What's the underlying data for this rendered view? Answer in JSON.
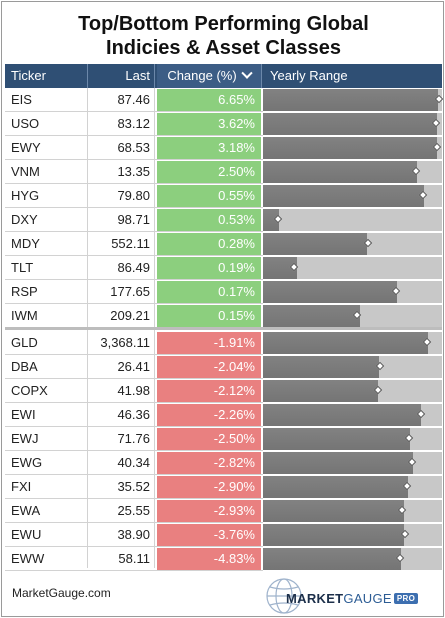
{
  "title": {
    "line1": "Top/Bottom Performing Global",
    "line2": "Indicies & Asset Classes"
  },
  "header": {
    "ticker": "Ticker",
    "last": "Last",
    "change": "Change (%)",
    "range": "Yearly Range"
  },
  "colors": {
    "header_bg": "#2f4f74",
    "positive": "#8ccf7e",
    "negative": "#e98080",
    "range_bar": "#7b7b7b",
    "range_bg": "#c8c8c8"
  },
  "chart_data": {
    "type": "table",
    "columns": [
      "Ticker",
      "Last",
      "Change (%)",
      "Yearly Range"
    ],
    "rows": [
      {
        "ticker": "EIS",
        "last": "87.46",
        "change": "6.65%",
        "range_fraction": 0.98,
        "marker": 0.99
      },
      {
        "ticker": "USO",
        "last": "83.12",
        "change": "3.62%",
        "range_fraction": 0.97,
        "marker": 0.97
      },
      {
        "ticker": "EWY",
        "last": "68.53",
        "change": "3.18%",
        "range_fraction": 0.97,
        "marker": 0.98
      },
      {
        "ticker": "VNM",
        "last": "13.35",
        "change": "2.50%",
        "range_fraction": 0.86,
        "marker": 0.86
      },
      {
        "ticker": "HYG",
        "last": "79.80",
        "change": "0.55%",
        "range_fraction": 0.9,
        "marker": 0.9
      },
      {
        "ticker": "DXY",
        "last": "98.71",
        "change": "0.53%",
        "range_fraction": 0.09,
        "marker": 0.09
      },
      {
        "ticker": "MDY",
        "last": "552.11",
        "change": "0.28%",
        "range_fraction": 0.58,
        "marker": 0.59
      },
      {
        "ticker": "TLT",
        "last": "86.49",
        "change": "0.19%",
        "range_fraction": 0.19,
        "marker": 0.18
      },
      {
        "ticker": "RSP",
        "last": "177.65",
        "change": "0.17%",
        "range_fraction": 0.75,
        "marker": 0.75
      },
      {
        "ticker": "IWM",
        "last": "209.21",
        "change": "0.15%",
        "range_fraction": 0.54,
        "marker": 0.53
      },
      {
        "ticker": "GLD",
        "last": "3,368.11",
        "change": "-1.91%",
        "range_fraction": 0.92,
        "marker": 0.92
      },
      {
        "ticker": "DBA",
        "last": "26.41",
        "change": "-2.04%",
        "range_fraction": 0.65,
        "marker": 0.66
      },
      {
        "ticker": "COPX",
        "last": "41.98",
        "change": "-2.12%",
        "range_fraction": 0.64,
        "marker": 0.65
      },
      {
        "ticker": "EWI",
        "last": "46.36",
        "change": "-2.26%",
        "range_fraction": 0.88,
        "marker": 0.89
      },
      {
        "ticker": "EWJ",
        "last": "71.76",
        "change": "-2.50%",
        "range_fraction": 0.82,
        "marker": 0.82
      },
      {
        "ticker": "EWG",
        "last": "40.34",
        "change": "-2.82%",
        "range_fraction": 0.84,
        "marker": 0.84
      },
      {
        "ticker": "FXI",
        "last": "35.52",
        "change": "-2.90%",
        "range_fraction": 0.81,
        "marker": 0.81
      },
      {
        "ticker": "EWA",
        "last": "25.55",
        "change": "-2.93%",
        "range_fraction": 0.79,
        "marker": 0.78
      },
      {
        "ticker": "EWU",
        "last": "38.90",
        "change": "-3.76%",
        "range_fraction": 0.79,
        "marker": 0.8
      },
      {
        "ticker": "EWW",
        "last": "58.11",
        "change": "-4.83%",
        "range_fraction": 0.77,
        "marker": 0.77
      }
    ]
  },
  "footer": {
    "source": "MarketGauge.com",
    "brand_bold": "MARKET",
    "brand_light": "GAUGE",
    "brand_badge": "PRO"
  }
}
